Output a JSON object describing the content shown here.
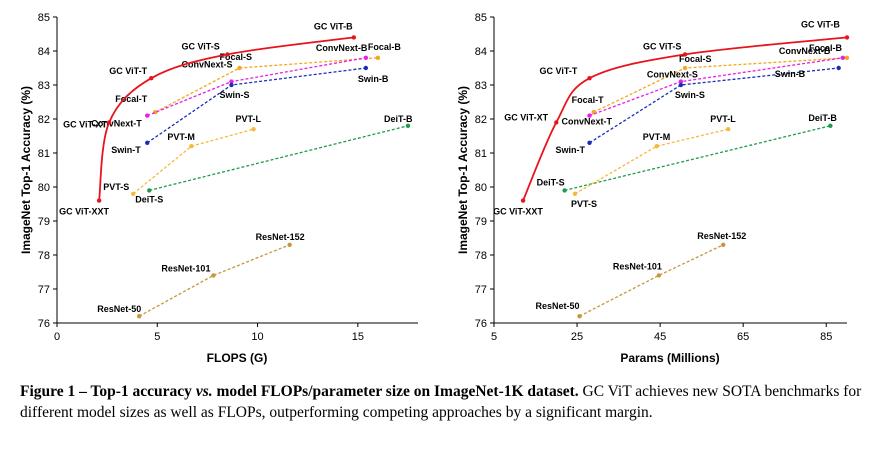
{
  "chart_data": [
    {
      "type": "line",
      "xlabel": "FLOPS (G)",
      "ylabel": "ImageNet Top-1 Accuracy (%)",
      "xlim": [
        0,
        18
      ],
      "ylim": [
        76,
        85
      ],
      "xticks": [
        0,
        5,
        10,
        15
      ],
      "yticks": [
        76,
        77,
        78,
        79,
        80,
        81,
        82,
        83,
        84,
        85
      ],
      "grid": false,
      "series": [
        {
          "name": "GC ViT",
          "color": "#e8141b",
          "dashed": false,
          "points": [
            {
              "label": "GC ViT-XXT",
              "x": 2.1,
              "y": 79.6
            },
            {
              "label": "GC ViT-XT",
              "x": 2.6,
              "y": 81.9
            },
            {
              "label": "GC ViT-T",
              "x": 4.7,
              "y": 83.2
            },
            {
              "label": "GC ViT-S",
              "x": 8.5,
              "y": 83.9
            },
            {
              "label": "GC ViT-B",
              "x": 14.8,
              "y": 84.4
            }
          ]
        },
        {
          "name": "Focal",
          "color": "#f3a71d",
          "dashed": true,
          "points": [
            {
              "label": "Focal-T",
              "x": 4.9,
              "y": 82.2
            },
            {
              "label": "Focal-S",
              "x": 9.1,
              "y": 83.5
            },
            {
              "label": "Focal-B",
              "x": 16.0,
              "y": 83.8
            }
          ]
        },
        {
          "name": "ConvNeXt",
          "color": "#ea1ee6",
          "dashed": true,
          "points": [
            {
              "label": "ConvNext-T",
              "x": 4.5,
              "y": 82.1
            },
            {
              "label": "ConvNext-S",
              "x": 8.7,
              "y": 83.1
            },
            {
              "label": "ConvNext-B",
              "x": 15.4,
              "y": 83.8
            }
          ]
        },
        {
          "name": "Swin",
          "color": "#1b2db8",
          "dashed": true,
          "points": [
            {
              "label": "Swin-T",
              "x": 4.5,
              "y": 81.3
            },
            {
              "label": "Swin-S",
              "x": 8.7,
              "y": 83.0
            },
            {
              "label": "Swin-B",
              "x": 15.4,
              "y": 83.5
            }
          ]
        },
        {
          "name": "DeiT",
          "color": "#1f9b4c",
          "dashed": true,
          "points": [
            {
              "label": "DeiT-S",
              "x": 4.6,
              "y": 79.9
            },
            {
              "label": "DeiT-B",
              "x": 17.5,
              "y": 81.8
            }
          ]
        },
        {
          "name": "PVT",
          "color": "#f5b93b",
          "dashed": true,
          "points": [
            {
              "label": "PVT-S",
              "x": 3.8,
              "y": 79.8
            },
            {
              "label": "PVT-M",
              "x": 6.7,
              "y": 81.2
            },
            {
              "label": "PVT-L",
              "x": 9.8,
              "y": 81.7
            }
          ]
        },
        {
          "name": "ResNet",
          "color": "#c5973a",
          "dashed": true,
          "points": [
            {
              "label": "ResNet-50",
              "x": 4.1,
              "y": 76.2
            },
            {
              "label": "ResNet-101",
              "x": 7.8,
              "y": 77.4
            },
            {
              "label": "ResNet-152",
              "x": 11.6,
              "y": 78.3
            }
          ]
        }
      ]
    },
    {
      "type": "line",
      "xlabel": "Params (Millions)",
      "ylabel": "ImageNet Top-1 Accuracy (%)",
      "xlim": [
        5,
        90
      ],
      "ylim": [
        76,
        85
      ],
      "xticks": [
        5,
        25,
        45,
        65,
        85
      ],
      "yticks": [
        76,
        77,
        78,
        79,
        80,
        81,
        82,
        83,
        84,
        85
      ],
      "grid": false,
      "series": [
        {
          "name": "GC ViT",
          "color": "#e8141b",
          "dashed": false,
          "points": [
            {
              "label": "GC ViT-XXT",
              "x": 12,
              "y": 79.6
            },
            {
              "label": "GC ViT-XT",
              "x": 20,
              "y": 81.9
            },
            {
              "label": "GC ViT-T",
              "x": 28,
              "y": 83.2
            },
            {
              "label": "GC ViT-S",
              "x": 51,
              "y": 83.9
            },
            {
              "label": "GC ViT-B",
              "x": 90,
              "y": 84.4
            }
          ]
        },
        {
          "name": "Focal",
          "color": "#f3a71d",
          "dashed": true,
          "points": [
            {
              "label": "Focal-T",
              "x": 29,
              "y": 82.2
            },
            {
              "label": "Focal-S",
              "x": 51,
              "y": 83.5
            },
            {
              "label": "Focal-B",
              "x": 90,
              "y": 83.8
            }
          ]
        },
        {
          "name": "ConvNeXt",
          "color": "#ea1ee6",
          "dashed": true,
          "points": [
            {
              "label": "ConvNext-T",
              "x": 28,
              "y": 82.1
            },
            {
              "label": "ConvNext-S",
              "x": 50,
              "y": 83.1
            },
            {
              "label": "ConvNext-B",
              "x": 89,
              "y": 83.8
            }
          ]
        },
        {
          "name": "Swin",
          "color": "#1b2db8",
          "dashed": true,
          "points": [
            {
              "label": "Swin-T",
              "x": 28,
              "y": 81.3
            },
            {
              "label": "Swin-S",
              "x": 50,
              "y": 83.0
            },
            {
              "label": "Swin-B",
              "x": 88,
              "y": 83.5
            }
          ]
        },
        {
          "name": "DeiT",
          "color": "#1f9b4c",
          "dashed": true,
          "points": [
            {
              "label": "DeiT-S",
              "x": 22,
              "y": 79.9
            },
            {
              "label": "DeiT-B",
              "x": 86,
              "y": 81.8
            }
          ]
        },
        {
          "name": "PVT",
          "color": "#f5b93b",
          "dashed": true,
          "points": [
            {
              "label": "PVT-S",
              "x": 24.5,
              "y": 79.8
            },
            {
              "label": "PVT-M",
              "x": 44.2,
              "y": 81.2
            },
            {
              "label": "PVT-L",
              "x": 61.4,
              "y": 81.7
            }
          ]
        },
        {
          "name": "ResNet",
          "color": "#c5973a",
          "dashed": true,
          "points": [
            {
              "label": "ResNet-50",
              "x": 25.6,
              "y": 76.2
            },
            {
              "label": "ResNet-101",
              "x": 44.7,
              "y": 77.4
            },
            {
              "label": "ResNet-152",
              "x": 60.2,
              "y": 78.3
            }
          ]
        }
      ]
    }
  ],
  "caption": {
    "figure_label": "Figure 1 – Top-1 accuracy ",
    "vs_text": "vs.",
    "bold_rest": " model FLOPs/parameter size on ImageNet-1K dataset.",
    "body": " GC ViT achieves new SOTA benchmarks for different model sizes as well as FLOPs, outperforming competing approaches by a significant margin."
  }
}
